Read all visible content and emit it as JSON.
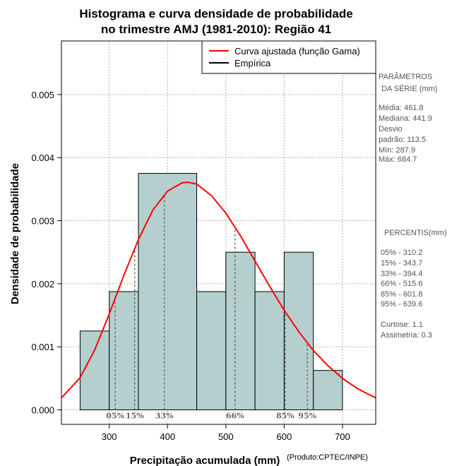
{
  "title": {
    "line1": "Histograma e curva densidade de probabilidade",
    "line2": "no trimestre AMJ (1981-2010): Região 41"
  },
  "legend": {
    "position": "top-right",
    "entries": [
      {
        "label": "Curva ajustada (função Gama)",
        "color": "#ff0000"
      },
      {
        "label": "Empírica",
        "color": "#000000"
      }
    ]
  },
  "side_panel": {
    "params_title_1": "PARÂMETROS",
    "params_title_2": "DA SÉRIE (mm)",
    "media": "Média:  461.8",
    "mediana": "Mediana:  441.9",
    "desvio_1": "Desvio",
    "desvio_2": "padrão:  113.5",
    "min": "Mín:  287.9",
    "max": "Máx:  684.7",
    "percentis_title": "PERCENTIS(mm)",
    "percentis": [
      "05% -  310.2",
      "15% -  343.7",
      "33% -  394.4",
      "66% -  515.6",
      "85% -  601.8",
      "95% -  639.6"
    ],
    "curtose": "Curtose:  1.1",
    "assimetria": "Assimetria:  0.3"
  },
  "credit": "(Produto:CPTEC/INPE)",
  "chart_data": {
    "type": "bar",
    "xlabel": "Precipitação acumulada (mm)",
    "ylabel": "Densidade de probabilidade",
    "xlim": [
      218,
      757
    ],
    "ylim": [
      -0.00023,
      0.00585
    ],
    "x_ticks": [
      300,
      400,
      500,
      600,
      700
    ],
    "y_ticks": [
      0.0,
      0.001,
      0.002,
      0.003,
      0.004,
      0.005
    ],
    "y_tick_labels": [
      "0.000",
      "0.001",
      "0.002",
      "0.003",
      "0.004",
      "0.005"
    ],
    "grid": true,
    "bins": [
      {
        "x0": 250,
        "x1": 300,
        "density": 0.00125
      },
      {
        "x0": 300,
        "x1": 350,
        "density": 0.001875
      },
      {
        "x0": 350,
        "x1": 450,
        "density": 0.00375
      },
      {
        "x0": 450,
        "x1": 500,
        "density": 0.001875
      },
      {
        "x0": 500,
        "x1": 550,
        "density": 0.0025
      },
      {
        "x0": 550,
        "x1": 600,
        "density": 0.001875
      },
      {
        "x0": 600,
        "x1": 650,
        "density": 0.0025
      },
      {
        "x0": 650,
        "x1": 700,
        "density": 0.000625
      }
    ],
    "bar_color": "#b5cfcf",
    "curve": {
      "name": "Curva ajustada (função Gama)",
      "color": "#ff0000",
      "points": [
        [
          218,
          0.00019
        ],
        [
          250,
          0.00051
        ],
        [
          275,
          0.00095
        ],
        [
          300,
          0.00152
        ],
        [
          325,
          0.00213
        ],
        [
          350,
          0.0027
        ],
        [
          375,
          0.00317
        ],
        [
          400,
          0.00347
        ],
        [
          425,
          0.0036
        ],
        [
          435,
          0.00361
        ],
        [
          450,
          0.00358
        ],
        [
          475,
          0.0034
        ],
        [
          500,
          0.00312
        ],
        [
          525,
          0.00276
        ],
        [
          550,
          0.00236
        ],
        [
          575,
          0.00196
        ],
        [
          600,
          0.00158
        ],
        [
          625,
          0.00124
        ],
        [
          650,
          0.00094
        ],
        [
          675,
          0.0007
        ],
        [
          700,
          0.0005
        ],
        [
          725,
          0.00034
        ],
        [
          757,
          0.00019
        ]
      ]
    },
    "percentiles": [
      {
        "label": "05%",
        "x": 310.2
      },
      {
        "label": "15%",
        "x": 343.7
      },
      {
        "label": "33%",
        "x": 394.4
      },
      {
        "label": "66%",
        "x": 515.6
      },
      {
        "label": "85%",
        "x": 601.8
      },
      {
        "label": "95%",
        "x": 639.6
      }
    ]
  }
}
